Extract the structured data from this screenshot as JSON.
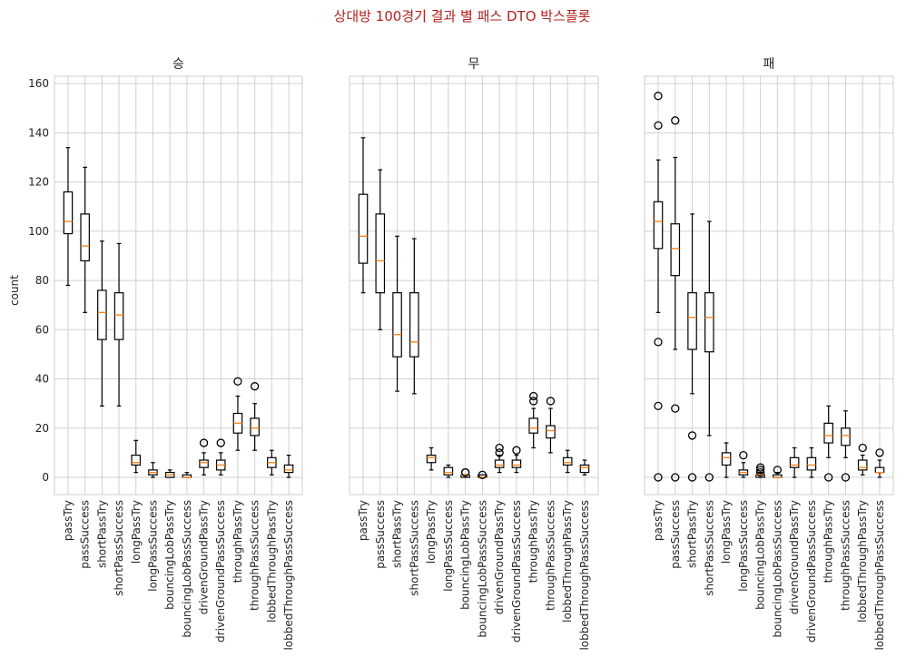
{
  "figure": {
    "suptitle": "상대방 100경기 결과 별 패스 DTO 박스플롯",
    "ylabel": "count",
    "yticks": [
      0,
      20,
      40,
      60,
      80,
      100,
      120,
      140,
      160
    ]
  },
  "chart_data": [
    {
      "type": "box",
      "title": "승",
      "ylabel": "count",
      "ylim": [
        -7,
        163
      ],
      "grid": true,
      "categories": [
        "passTry",
        "passSuccess",
        "shortPassTry",
        "shortPassSuccess",
        "longPassTry",
        "longPassSuccess",
        "bouncingLobPassTry",
        "bouncingLobPassSuccess",
        "drivenGroundPassTry",
        "drivenGroundPassSuccess",
        "throughPassTry",
        "throughPassSuccess",
        "lobbedThroughPassTry",
        "lobbedThroughPassSuccess"
      ],
      "boxes": [
        {
          "whislo": 78,
          "q1": 99,
          "med": 104,
          "q3": 116,
          "whishi": 134,
          "fliers": []
        },
        {
          "whislo": 67,
          "q1": 88,
          "med": 94,
          "q3": 107,
          "whishi": 126,
          "fliers": []
        },
        {
          "whislo": 29,
          "q1": 56,
          "med": 67,
          "q3": 76,
          "whishi": 96,
          "fliers": []
        },
        {
          "whislo": 29,
          "q1": 56,
          "med": 66,
          "q3": 75,
          "whishi": 95,
          "fliers": []
        },
        {
          "whislo": 2,
          "q1": 5,
          "med": 6,
          "q3": 9,
          "whishi": 15,
          "fliers": []
        },
        {
          "whislo": 0,
          "q1": 1,
          "med": 2,
          "q3": 3,
          "whishi": 6,
          "fliers": []
        },
        {
          "whislo": 0,
          "q1": 0,
          "med": 1,
          "q3": 2,
          "whishi": 3,
          "fliers": []
        },
        {
          "whislo": 0,
          "q1": 0,
          "med": 0,
          "q3": 1,
          "whishi": 2,
          "fliers": []
        },
        {
          "whislo": 1,
          "q1": 4,
          "med": 6,
          "q3": 7,
          "whishi": 10,
          "fliers": [
            14
          ]
        },
        {
          "whislo": 1,
          "q1": 3,
          "med": 5,
          "q3": 7,
          "whishi": 10,
          "fliers": [
            14
          ]
        },
        {
          "whislo": 11,
          "q1": 18,
          "med": 22,
          "q3": 26,
          "whishi": 33,
          "fliers": [
            39
          ]
        },
        {
          "whislo": 11,
          "q1": 17,
          "med": 20,
          "q3": 24,
          "whishi": 30,
          "fliers": [
            37
          ]
        },
        {
          "whislo": 1,
          "q1": 4,
          "med": 6,
          "q3": 8,
          "whishi": 11,
          "fliers": []
        },
        {
          "whislo": 0,
          "q1": 2,
          "med": 3,
          "q3": 5,
          "whishi": 9,
          "fliers": []
        }
      ]
    },
    {
      "type": "box",
      "title": "무",
      "ylim": [
        -7,
        163
      ],
      "grid": true,
      "categories": [
        "passTry",
        "passSuccess",
        "shortPassTry",
        "shortPassSuccess",
        "longPassTry",
        "longPassSuccess",
        "bouncingLobPassTry",
        "bouncingLobPassSuccess",
        "drivenGroundPassTry",
        "drivenGroundPassSuccess",
        "throughPassTry",
        "throughPassSuccess",
        "lobbedThroughPassTry",
        "lobbedThroughPassSuccess"
      ],
      "boxes": [
        {
          "whislo": 75,
          "q1": 87,
          "med": 98,
          "q3": 115,
          "whishi": 138,
          "fliers": []
        },
        {
          "whislo": 60,
          "q1": 75,
          "med": 88,
          "q3": 107,
          "whishi": 125,
          "fliers": []
        },
        {
          "whislo": 35,
          "q1": 49,
          "med": 58,
          "q3": 75,
          "whishi": 98,
          "fliers": []
        },
        {
          "whislo": 34,
          "q1": 49,
          "med": 55,
          "q3": 75,
          "whishi": 97,
          "fliers": []
        },
        {
          "whislo": 3,
          "q1": 6,
          "med": 8,
          "q3": 9,
          "whishi": 12,
          "fliers": []
        },
        {
          "whislo": 0,
          "q1": 1,
          "med": 2,
          "q3": 4,
          "whishi": 5,
          "fliers": []
        },
        {
          "whislo": 0,
          "q1": 0,
          "med": 1,
          "q3": 1,
          "whishi": 1,
          "fliers": [
            2,
            2
          ]
        },
        {
          "whislo": 0,
          "q1": 0,
          "med": 0,
          "q3": 1,
          "whishi": 1,
          "fliers": [
            1
          ]
        },
        {
          "whislo": 2,
          "q1": 4,
          "med": 5,
          "q3": 7,
          "whishi": 9,
          "fliers": [
            10,
            12
          ]
        },
        {
          "whislo": 2,
          "q1": 4,
          "med": 5,
          "q3": 7,
          "whishi": 9,
          "fliers": [
            11
          ]
        },
        {
          "whislo": 12,
          "q1": 18,
          "med": 20,
          "q3": 24,
          "whishi": 28,
          "fliers": [
            31,
            33
          ]
        },
        {
          "whislo": 10,
          "q1": 16,
          "med": 19,
          "q3": 21,
          "whishi": 28,
          "fliers": [
            31
          ]
        },
        {
          "whislo": 2,
          "q1": 5,
          "med": 6,
          "q3": 8,
          "whishi": 11,
          "fliers": []
        },
        {
          "whislo": 1,
          "q1": 2,
          "med": 4,
          "q3": 5,
          "whishi": 7,
          "fliers": []
        }
      ]
    },
    {
      "type": "box",
      "title": "패",
      "ylim": [
        -7,
        163
      ],
      "grid": true,
      "categories": [
        "passTry",
        "passSuccess",
        "shortPassTry",
        "shortPassSuccess",
        "longPassTry",
        "longPassSuccess",
        "bouncingLobPassTry",
        "bouncingLobPassSuccess",
        "drivenGroundPassTry",
        "drivenGroundPassSuccess",
        "throughPassTry",
        "throughPassSuccess",
        "lobbedThroughPassTry",
        "lobbedThroughPassSuccess"
      ],
      "boxes": [
        {
          "whislo": 67,
          "q1": 93,
          "med": 104,
          "q3": 112,
          "whishi": 129,
          "fliers": [
            155,
            143,
            55,
            29,
            0
          ]
        },
        {
          "whislo": 52,
          "q1": 82,
          "med": 93,
          "q3": 103,
          "whishi": 130,
          "fliers": [
            145,
            28,
            0
          ]
        },
        {
          "whislo": 34,
          "q1": 52,
          "med": 65,
          "q3": 75,
          "whishi": 107,
          "fliers": [
            17,
            0
          ]
        },
        {
          "whislo": 17,
          "q1": 51,
          "med": 65,
          "q3": 75,
          "whishi": 104,
          "fliers": [
            0
          ]
        },
        {
          "whislo": 0,
          "q1": 5,
          "med": 8,
          "q3": 10,
          "whishi": 14,
          "fliers": []
        },
        {
          "whislo": 0,
          "q1": 1,
          "med": 2,
          "q3": 3,
          "whishi": 6,
          "fliers": [
            9
          ]
        },
        {
          "whislo": 0,
          "q1": 0,
          "med": 1,
          "q3": 1,
          "whishi": 2,
          "fliers": [
            2,
            3,
            4
          ]
        },
        {
          "whislo": 0,
          "q1": 0,
          "med": 0,
          "q3": 1,
          "whishi": 2,
          "fliers": [
            3
          ]
        },
        {
          "whislo": 0,
          "q1": 4,
          "med": 5,
          "q3": 8,
          "whishi": 12,
          "fliers": []
        },
        {
          "whislo": 0,
          "q1": 3,
          "med": 5,
          "q3": 8,
          "whishi": 12,
          "fliers": []
        },
        {
          "whislo": 8,
          "q1": 14,
          "med": 17,
          "q3": 22,
          "whishi": 29,
          "fliers": [
            0
          ]
        },
        {
          "whislo": 8,
          "q1": 13,
          "med": 17,
          "q3": 20,
          "whishi": 27,
          "fliers": [
            0
          ]
        },
        {
          "whislo": 1,
          "q1": 3,
          "med": 4,
          "q3": 7,
          "whishi": 9,
          "fliers": [
            12
          ]
        },
        {
          "whislo": 0,
          "q1": 2,
          "med": 2,
          "q3": 4,
          "whishi": 7,
          "fliers": [
            10
          ]
        }
      ]
    }
  ]
}
